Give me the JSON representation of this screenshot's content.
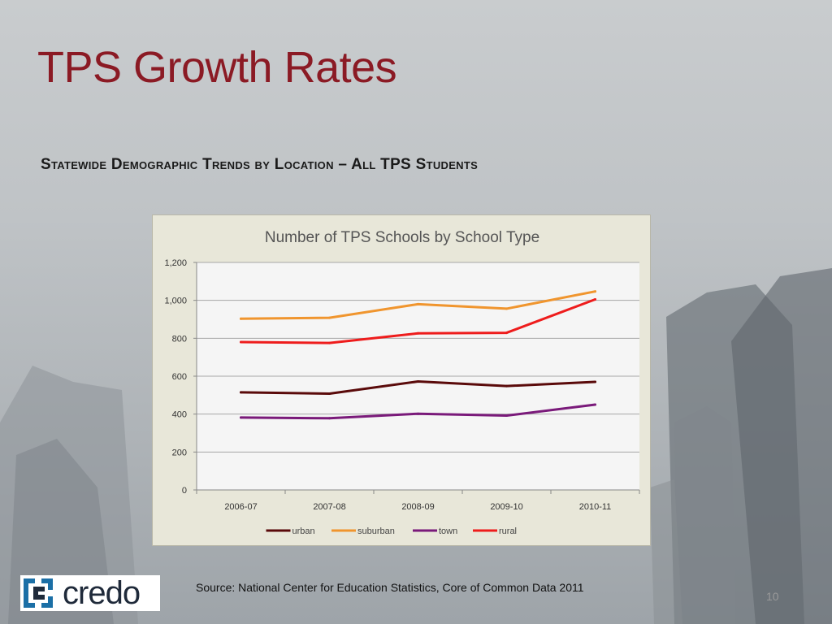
{
  "slide": {
    "title": "TPS Growth Rates",
    "subtitle": "Statewide Demographic Trends by Location – All TPS Students",
    "source": "Source:  National Center for Education Statistics, Core of Common Data 2011",
    "page_number": "10",
    "logo_text": "credo"
  },
  "chart_data": {
    "type": "line",
    "title": "Number of TPS Schools by School Type",
    "xlabel": "",
    "ylabel": "",
    "categories": [
      "2006-07",
      "2007-08",
      "2008-09",
      "2009-10",
      "2010-11"
    ],
    "ylim": [
      0,
      1200
    ],
    "yticks": [
      0,
      200,
      400,
      600,
      800,
      1000,
      1200
    ],
    "ytick_labels": [
      "0",
      "200",
      "400",
      "600",
      "800",
      "1,000",
      "1,200"
    ],
    "grid": true,
    "legend_position": "bottom",
    "series": [
      {
        "name": "urban",
        "color": "#5a0a0a",
        "values": [
          515,
          508,
          572,
          548,
          570
        ]
      },
      {
        "name": "suburban",
        "color": "#f0952e",
        "values": [
          903,
          908,
          980,
          956,
          1047
        ]
      },
      {
        "name": "town",
        "color": "#7a1a7a",
        "values": [
          382,
          378,
          402,
          392,
          450
        ]
      },
      {
        "name": "rural",
        "color": "#ee1c1c",
        "values": [
          780,
          775,
          826,
          829,
          1005
        ]
      }
    ]
  },
  "colors": {
    "title": "#8b1a24",
    "chart_frame": "#e8e7d9",
    "plot_area": "#f5f5f5",
    "grid": "#a6a6a6",
    "logo_blue": "#1b6fa6"
  }
}
